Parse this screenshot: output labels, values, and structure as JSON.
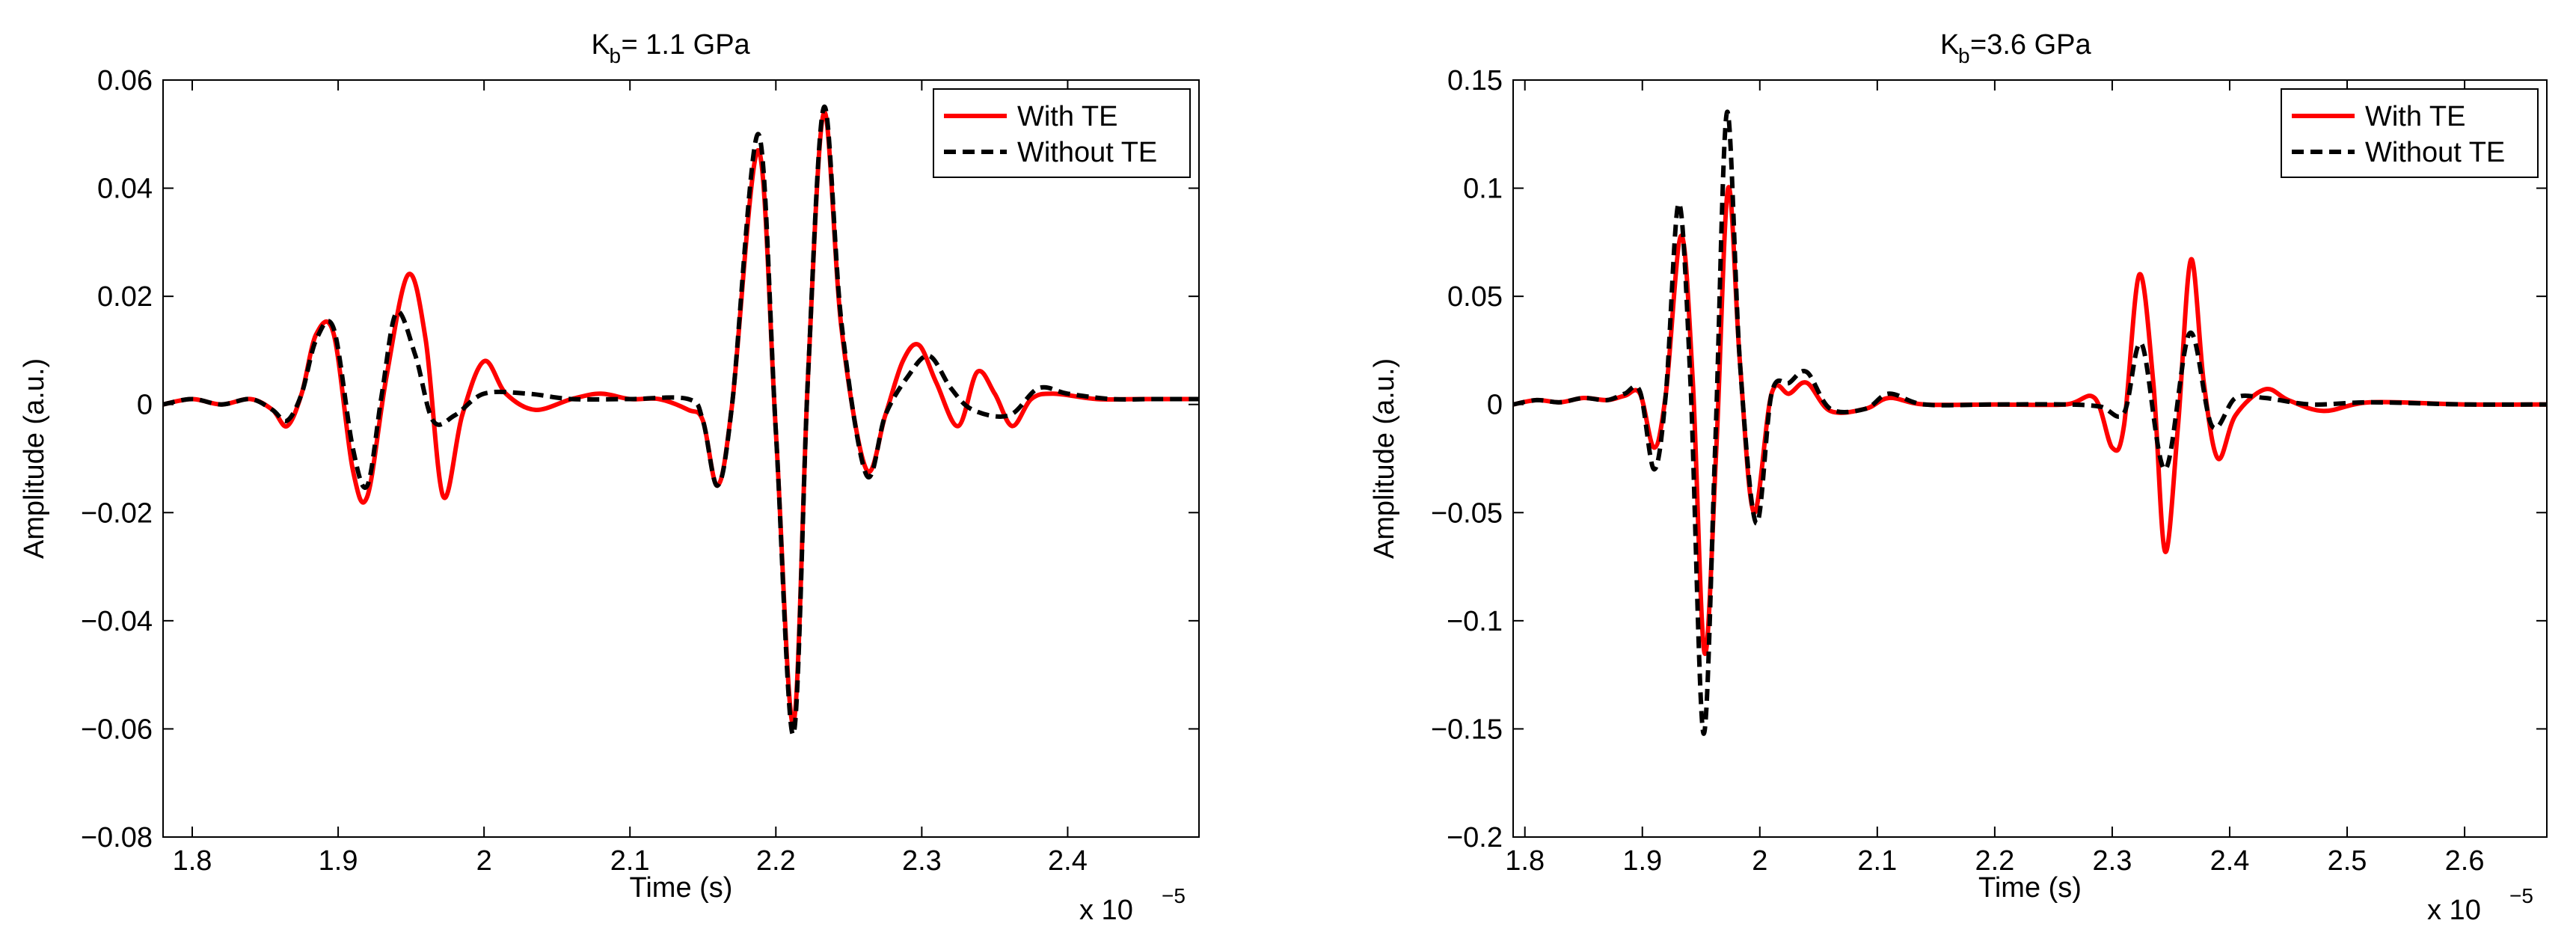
{
  "colors": {
    "with_te": "#ff0000",
    "without_te": "#000000",
    "axes": "#000000",
    "background": "#ffffff"
  },
  "chart_data": [
    {
      "type": "line",
      "title_main": "K",
      "title_sub": "b",
      "title_rest": " = 1.1 GPa",
      "xlabel": "Time (s)",
      "ylabel": "Amplitude (a.u.)",
      "xlim": [
        1.78,
        2.49
      ],
      "ylim": [
        -0.08,
        0.06
      ],
      "x_multiplier": "x 10",
      "x_multiplier_exp": "−5",
      "xticks": [
        1.8,
        1.9,
        2.0,
        2.1,
        2.2,
        2.3,
        2.4
      ],
      "xtick_labels": [
        "1.8",
        "1.9",
        "2",
        "2.1",
        "2.2",
        "2.3",
        "2.4"
      ],
      "yticks": [
        -0.08,
        -0.06,
        -0.04,
        -0.02,
        0,
        0.02,
        0.04,
        0.06
      ],
      "ytick_labels": [
        "−0.08",
        "−0.06",
        "−0.04",
        "−0.02",
        "0",
        "0.02",
        "0.04",
        "0.06"
      ],
      "legend": [
        "With TE",
        "Without TE"
      ],
      "legend_position": "top-right",
      "series": [
        {
          "name": "With TE",
          "style": "solid",
          "x": [
            1.78,
            1.8,
            1.82,
            1.84,
            1.855,
            1.865,
            1.875,
            1.885,
            1.897,
            1.91,
            1.92,
            1.933,
            1.948,
            1.96,
            1.972,
            1.985,
            2.0,
            2.015,
            2.035,
            2.06,
            2.08,
            2.1,
            2.12,
            2.14,
            2.15,
            2.16,
            2.17,
            2.188,
            2.2,
            2.212,
            2.222,
            2.233,
            2.245,
            2.262,
            2.275,
            2.287,
            2.298,
            2.31,
            2.325,
            2.338,
            2.35,
            2.362,
            2.375,
            2.39,
            2.42,
            2.45,
            2.49
          ],
          "y": [
            0.0,
            0.001,
            0.0,
            0.001,
            -0.001,
            -0.004,
            0.002,
            0.013,
            0.013,
            -0.012,
            -0.017,
            0.005,
            0.024,
            0.012,
            -0.017,
            -0.002,
            0.008,
            0.002,
            -0.001,
            0.001,
            0.002,
            0.001,
            0.001,
            -0.001,
            -0.003,
            -0.015,
            0.0,
            0.047,
            -0.005,
            -0.059,
            0.005,
            0.054,
            0.014,
            -0.012,
            -0.002,
            0.008,
            0.011,
            0.004,
            -0.004,
            0.006,
            0.002,
            -0.004,
            0.001,
            0.002,
            0.001,
            0.001,
            0.001
          ]
        },
        {
          "name": "Without TE",
          "style": "dashed",
          "x": [
            1.78,
            1.8,
            1.82,
            1.84,
            1.855,
            1.865,
            1.875,
            1.885,
            1.897,
            1.91,
            1.92,
            1.93,
            1.94,
            1.953,
            1.965,
            1.98,
            2.0,
            2.03,
            2.06,
            2.1,
            2.14,
            2.15,
            2.16,
            2.17,
            2.188,
            2.2,
            2.212,
            2.222,
            2.233,
            2.245,
            2.262,
            2.275,
            2.29,
            2.305,
            2.32,
            2.335,
            2.36,
            2.38,
            2.4,
            2.43,
            2.46,
            2.49
          ],
          "y": [
            0.0,
            0.001,
            0.0,
            0.001,
            -0.001,
            -0.003,
            0.002,
            0.012,
            0.014,
            -0.008,
            -0.015,
            0.002,
            0.017,
            0.009,
            -0.003,
            -0.002,
            0.002,
            0.002,
            0.001,
            0.001,
            0.001,
            -0.003,
            -0.015,
            0.0,
            0.05,
            -0.005,
            -0.061,
            0.005,
            0.055,
            0.015,
            -0.013,
            -0.002,
            0.005,
            0.009,
            0.003,
            -0.001,
            -0.002,
            0.003,
            0.002,
            0.001,
            0.001,
            0.001
          ]
        }
      ]
    },
    {
      "type": "line",
      "title_main": "K",
      "title_sub": "b",
      "title_rest": " =3.6 GPa",
      "xlabel": "Time (s)",
      "ylabel": "Amplitude (a.u.)",
      "xlim": [
        1.79,
        2.67
      ],
      "ylim": [
        -0.2,
        0.15
      ],
      "x_multiplier": "x 10",
      "x_multiplier_exp": "−5",
      "xticks": [
        1.8,
        1.9,
        2.0,
        2.1,
        2.2,
        2.3,
        2.4,
        2.5,
        2.6
      ],
      "xtick_labels": [
        "1.8",
        "1.9",
        "2",
        "2.1",
        "2.2",
        "2.3",
        "2.4",
        "2.5",
        "2.6"
      ],
      "yticks": [
        -0.2,
        -0.15,
        -0.1,
        -0.05,
        0,
        0.05,
        0.1,
        0.15
      ],
      "ytick_labels": [
        "−0.2",
        "−0.15",
        "−0.1",
        "−0.05",
        "0",
        "0.05",
        "0.1",
        "0.15"
      ],
      "legend": [
        "With TE",
        "Without TE"
      ],
      "legend_position": "top-right",
      "series": [
        {
          "name": "With TE",
          "style": "solid",
          "x": [
            1.79,
            1.81,
            1.83,
            1.85,
            1.87,
            1.885,
            1.898,
            1.91,
            1.92,
            1.933,
            1.943,
            1.953,
            1.963,
            1.973,
            1.983,
            1.995,
            2.01,
            2.025,
            2.04,
            2.06,
            2.09,
            2.11,
            2.14,
            2.2,
            2.26,
            2.285,
            2.3,
            2.31,
            2.323,
            2.335,
            2.345,
            2.356,
            2.367,
            2.378,
            2.39,
            2.405,
            2.43,
            2.45,
            2.48,
            2.52,
            2.6,
            2.67
          ],
          "y": [
            0.0,
            0.002,
            0.001,
            0.003,
            0.002,
            0.004,
            0.005,
            -0.02,
            0.005,
            0.078,
            0.01,
            -0.115,
            -0.02,
            0.1,
            0.02,
            -0.05,
            0.005,
            0.005,
            0.01,
            -0.003,
            -0.002,
            0.003,
            0.0,
            0.0,
            0.0,
            0.003,
            -0.02,
            -0.01,
            0.06,
            0.01,
            -0.068,
            -0.01,
            0.067,
            0.01,
            -0.025,
            -0.005,
            0.007,
            0.002,
            -0.003,
            0.001,
            0.0,
            0.0
          ]
        },
        {
          "name": "Without TE",
          "style": "dashed",
          "x": [
            1.79,
            1.81,
            1.83,
            1.85,
            1.87,
            1.885,
            1.898,
            1.91,
            1.92,
            1.931,
            1.941,
            1.952,
            1.962,
            1.972,
            1.983,
            1.997,
            2.01,
            2.025,
            2.04,
            2.06,
            2.09,
            2.11,
            2.14,
            2.2,
            2.26,
            2.29,
            2.31,
            2.325,
            2.345,
            2.366,
            2.385,
            2.405,
            2.43,
            2.47,
            2.52,
            2.6,
            2.67
          ],
          "y": [
            0.0,
            0.002,
            0.001,
            0.003,
            0.002,
            0.005,
            0.006,
            -0.03,
            0.005,
            0.093,
            0.01,
            -0.152,
            -0.02,
            0.135,
            0.02,
            -0.055,
            0.005,
            0.01,
            0.015,
            -0.002,
            -0.002,
            0.005,
            0.0,
            0.0,
            0.0,
            -0.001,
            -0.004,
            0.028,
            -0.03,
            0.033,
            -0.01,
            0.003,
            0.003,
            0.0,
            0.001,
            0.0,
            0.0
          ]
        }
      ]
    }
  ]
}
